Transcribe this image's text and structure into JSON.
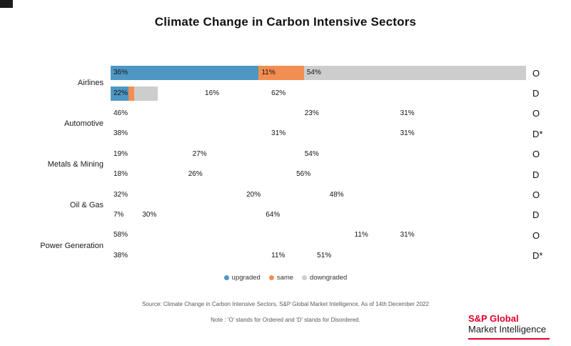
{
  "chart_data": {
    "type": "bar",
    "orientation": "horizontal",
    "stacked": true,
    "title": "Climate Change in Carbon Intensive Sectors",
    "value_unit": "%",
    "legend": [
      {
        "label": "upgraded",
        "color": "#4d97c3"
      },
      {
        "label": "same",
        "color": "#f28e52"
      },
      {
        "label": "downgraded",
        "color": "#cdcdcd"
      }
    ],
    "legend_position": "bottom-center",
    "sectors": [
      {
        "label": "Airlines",
        "rows": [
          {
            "suffix": "O",
            "values": [
              36,
              11,
              54
            ],
            "bar_state": "full"
          },
          {
            "suffix": "D",
            "values": [
              22,
              16,
              62
            ],
            "bar_state": "growing"
          }
        ]
      },
      {
        "label": "Automotive",
        "rows": [
          {
            "suffix": "O",
            "values": [
              46,
              23,
              31
            ],
            "bar_state": "hidden"
          },
          {
            "suffix": "D*",
            "values": [
              38,
              31,
              31
            ],
            "bar_state": "hidden"
          }
        ]
      },
      {
        "label": "Metals & Mining",
        "rows": [
          {
            "suffix": "O",
            "values": [
              19,
              27,
              54
            ],
            "bar_state": "hidden"
          },
          {
            "suffix": "D",
            "values": [
              18,
              26,
              56
            ],
            "bar_state": "hidden"
          }
        ]
      },
      {
        "label": "Oil & Gas",
        "rows": [
          {
            "suffix": "O",
            "values": [
              32,
              20,
              48
            ],
            "bar_state": "hidden"
          },
          {
            "suffix": "D",
            "values": [
              7,
              30,
              64
            ],
            "bar_state": "hidden"
          }
        ]
      },
      {
        "label": "Power Generation",
        "rows": [
          {
            "suffix": "O",
            "values": [
              58,
              11,
              31
            ],
            "bar_state": "hidden"
          },
          {
            "suffix": "D*",
            "values": [
              38,
              11,
              51
            ],
            "bar_state": "hidden"
          }
        ]
      }
    ]
  },
  "footer": {
    "source": "Source: Climate Change in Carbon Intensive Sectors, S&P Global Market Intelligence, As of 14th December 2022",
    "note": "Note :  ‘O’ stands for Ordered and ‘D’ stands for Disordered."
  },
  "logo": {
    "line1": "S&P Global",
    "line2": "Market Intelligence",
    "accent_color": "#e4002b"
  }
}
